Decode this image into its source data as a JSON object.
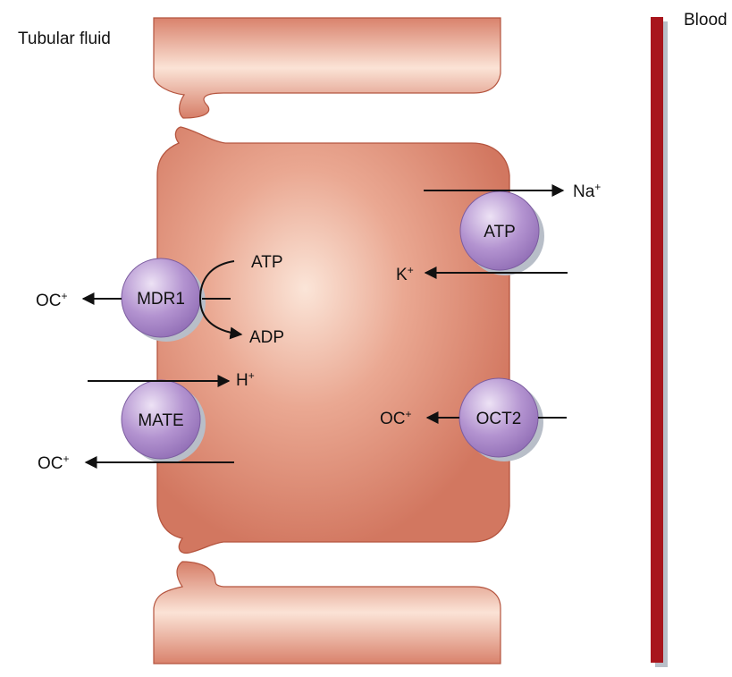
{
  "regions": {
    "lumen": "Tubular fluid",
    "blood": "Blood"
  },
  "transporters": {
    "mdr1": "MDR1",
    "mate": "MATE",
    "pump": "ATP",
    "oct2": "OCT2"
  },
  "ions": {
    "mdr1_atp": "ATP",
    "mdr1_adp": "ADP",
    "mdr1_out_base": "OC",
    "mdr1_out_sup": "+",
    "mate_in_base": "H",
    "mate_in_sup": "+",
    "mate_out_base": "OC",
    "mate_out_sup": "+",
    "na_base": "Na",
    "na_sup": "+",
    "k_base": "K",
    "k_sup": "+",
    "oct2_base": "OC",
    "oct2_sup": "+"
  },
  "colors": {
    "cell_fill": "#dc8a73",
    "cell_edge": "#b5553f",
    "cell_highlight": "#fbe7dc",
    "transporter": "#a585c4",
    "transporter_highlight": "#e3d5ef",
    "blood_vessel": "#a8151c",
    "arrow": "#111111"
  }
}
